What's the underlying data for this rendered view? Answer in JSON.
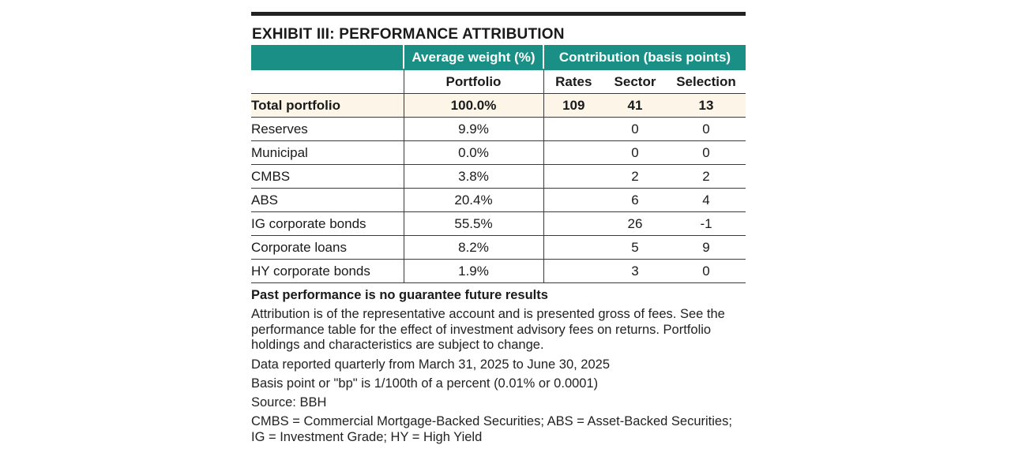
{
  "title": "EXHIBIT III: PERFORMANCE ATTRIBUTION",
  "header": {
    "weight_group": "Average weight (%)",
    "contrib_group": "Contribution (basis points)",
    "portfolio": "Portfolio",
    "rates": "Rates",
    "sector": "Sector",
    "selection": "Selection"
  },
  "total": {
    "label": "Total portfolio",
    "weight": "100.0%",
    "rates": "109",
    "sector": "41",
    "selection": "13"
  },
  "rows": [
    {
      "label": "Reserves",
      "weight": "9.9%",
      "rates": "",
      "sector": "0",
      "selection": "0"
    },
    {
      "label": "Municipal",
      "weight": "0.0%",
      "rates": "",
      "sector": "0",
      "selection": "0"
    },
    {
      "label": "CMBS",
      "weight": "3.8%",
      "rates": "",
      "sector": "2",
      "selection": "2"
    },
    {
      "label": "ABS",
      "weight": "20.4%",
      "rates": "",
      "sector": "6",
      "selection": "4"
    },
    {
      "label": "IG corporate bonds",
      "weight": "55.5%",
      "rates": "",
      "sector": "26",
      "selection": "-1"
    },
    {
      "label": "Corporate loans",
      "weight": "8.2%",
      "rates": "",
      "sector": "5",
      "selection": "9"
    },
    {
      "label": "HY corporate bonds",
      "weight": "1.9%",
      "rates": "",
      "sector": "3",
      "selection": "0"
    }
  ],
  "disclaimer": "Past performance is no guarantee future results",
  "notes": {
    "attribution": "Attribution is of the representative account and is presented gross of fees. See the performance table for the effect of investment advisory fees on returns. Portfolio holdings and characteristics are subject to change.",
    "data_period": "Data reported quarterly from March 31, 2025 to June 30, 2025",
    "basis_point": "Basis point or \"bp\" is 1/100th of a percent (0.01% or 0.0001)",
    "source": "Source: BBH",
    "abbreviations": "CMBS = Commercial Mortgage-Backed Securities; ABS = Asset-Backed Securities; IG = Investment Grade; HY = High Yield"
  },
  "colors": {
    "header_teal": "#1a8f86",
    "total_row_bg": "#fdf5e8"
  }
}
